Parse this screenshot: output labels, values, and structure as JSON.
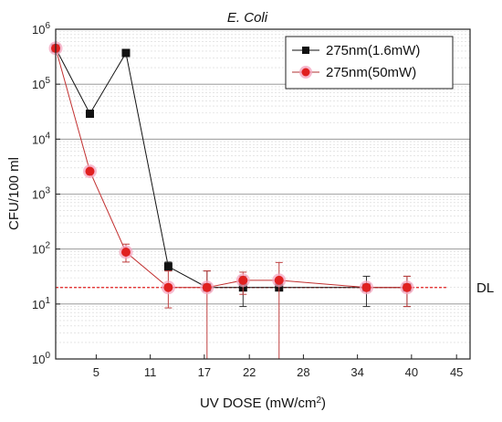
{
  "chart_data": {
    "type": "scatter",
    "title": "E. Coli",
    "xlabel": "UV DOSE (mW/cm²)",
    "ylabel": "CFU/100 ml",
    "x_ticks": [
      5,
      11,
      17,
      22,
      28,
      34,
      40,
      45
    ],
    "y_ticks": [
      {
        "value": 1,
        "label_base": "10",
        "label_exp": "0"
      },
      {
        "value": 10,
        "label_base": "10",
        "label_exp": "1"
      },
      {
        "value": 100,
        "label_base": "10",
        "label_exp": "2"
      },
      {
        "value": 1000,
        "label_base": "10",
        "label_exp": "3"
      },
      {
        "value": 10000,
        "label_base": "10",
        "label_exp": "4"
      },
      {
        "value": 100000,
        "label_base": "10",
        "label_exp": "5"
      },
      {
        "value": 1000000,
        "label_base": "10",
        "label_exp": "6"
      }
    ],
    "xlim": [
      0.5,
      46.5
    ],
    "ylim": [
      1,
      1000000
    ],
    "yscale": "log",
    "grid": "horizontal",
    "legend_position": "top-right",
    "series": [
      {
        "name": "275nm(1.6mW)",
        "marker": "square",
        "color": "#111111",
        "x": [
          0.5,
          4.3,
          8.3,
          13.0,
          17.3,
          21.3,
          25.3,
          35.0,
          39.5
        ],
        "y": [
          450000,
          29000,
          370000,
          48,
          20,
          20,
          20,
          20,
          20
        ],
        "y_err_low": [
          0,
          3000,
          100,
          8,
          0,
          11,
          0,
          11,
          11
        ],
        "y_err_high": [
          0,
          3000,
          130,
          10,
          20,
          12,
          0,
          12,
          12
        ]
      },
      {
        "name": "275nm(50mW)",
        "marker": "circle",
        "color": "#e02020",
        "x": [
          0.5,
          4.3,
          8.3,
          13.0,
          17.3,
          21.3,
          25.3,
          35.0,
          39.5
        ],
        "y": [
          450000,
          2600,
          88,
          20,
          20,
          27,
          27,
          20,
          20
        ],
        "y_err_low": [
          0,
          0,
          30,
          11.5,
          19,
          12,
          26,
          0,
          11
        ],
        "y_err_high": [
          0,
          0,
          35,
          20,
          20,
          11,
          30,
          0,
          12
        ]
      }
    ],
    "reference_line": {
      "label": "DL",
      "y": 20,
      "color": "#e02020"
    }
  }
}
